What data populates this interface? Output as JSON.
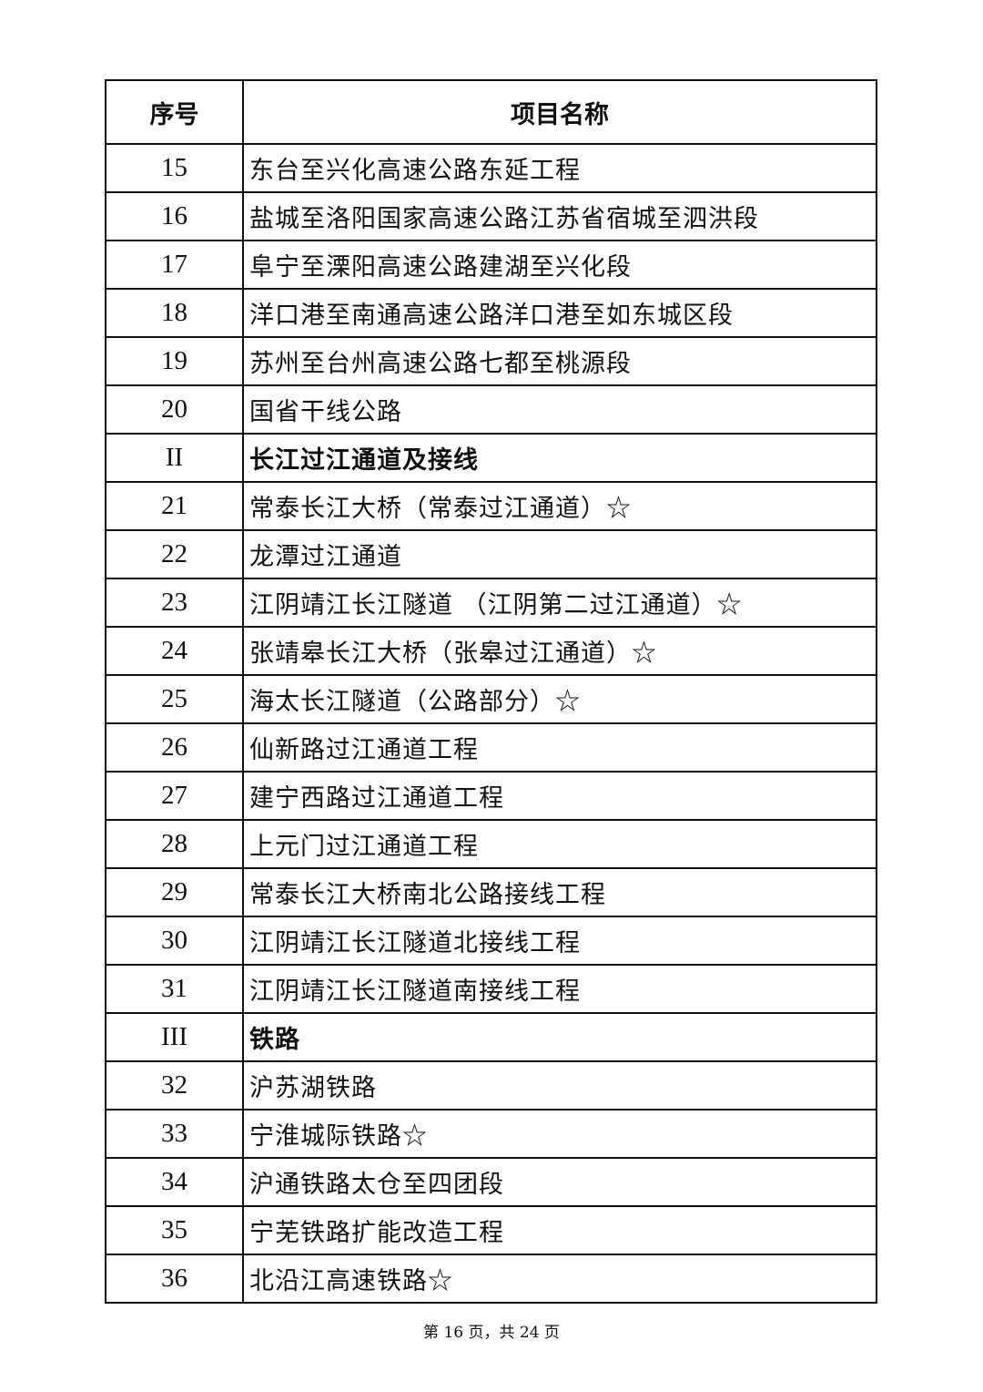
{
  "table": {
    "headers": [
      "序号",
      "项目名称"
    ],
    "rows": [
      {
        "no": "15",
        "name": "东台至兴化高速公路东延工程",
        "section": false
      },
      {
        "no": "16",
        "name": "盐城至洛阳国家高速公路江苏省宿城至泗洪段",
        "section": false
      },
      {
        "no": "17",
        "name": "阜宁至溧阳高速公路建湖至兴化段",
        "section": false
      },
      {
        "no": "18",
        "name": "洋口港至南通高速公路洋口港至如东城区段",
        "section": false
      },
      {
        "no": "19",
        "name": "苏州至台州高速公路七都至桃源段",
        "section": false
      },
      {
        "no": "20",
        "name": "国省干线公路",
        "section": false
      },
      {
        "no": "II",
        "name": "长江过江通道及接线",
        "section": true
      },
      {
        "no": "21",
        "name": "常泰长江大桥（常泰过江通道）☆",
        "section": false
      },
      {
        "no": "22",
        "name": "龙潭过江通道",
        "section": false
      },
      {
        "no": "23",
        "name": "江阴靖江长江隧道 （江阴第二过江通道）☆",
        "section": false
      },
      {
        "no": "24",
        "name": "张靖皋长江大桥（张皋过江通道）☆",
        "section": false
      },
      {
        "no": "25",
        "name": "海太长江隧道（公路部分）☆",
        "section": false
      },
      {
        "no": "26",
        "name": "仙新路过江通道工程",
        "section": false
      },
      {
        "no": "27",
        "name": "建宁西路过江通道工程",
        "section": false
      },
      {
        "no": "28",
        "name": "上元门过江通道工程",
        "section": false
      },
      {
        "no": "29",
        "name": "常泰长江大桥南北公路接线工程",
        "section": false
      },
      {
        "no": "30",
        "name": "江阴靖江长江隧道北接线工程",
        "section": false
      },
      {
        "no": "31",
        "name": "江阴靖江长江隧道南接线工程",
        "section": false
      },
      {
        "no": "III",
        "name": "铁路",
        "section": true
      },
      {
        "no": "32",
        "name": "沪苏湖铁路",
        "section": false
      },
      {
        "no": "33",
        "name": "宁淮城际铁路☆",
        "section": false
      },
      {
        "no": "34",
        "name": "沪通铁路太仓至四团段",
        "section": false
      },
      {
        "no": "35",
        "name": "宁芜铁路扩能改造工程",
        "section": false
      },
      {
        "no": "36",
        "name": "北沿江高速铁路☆",
        "section": false
      }
    ]
  },
  "footer": {
    "page_label": "第 16 页，共 24 页"
  }
}
